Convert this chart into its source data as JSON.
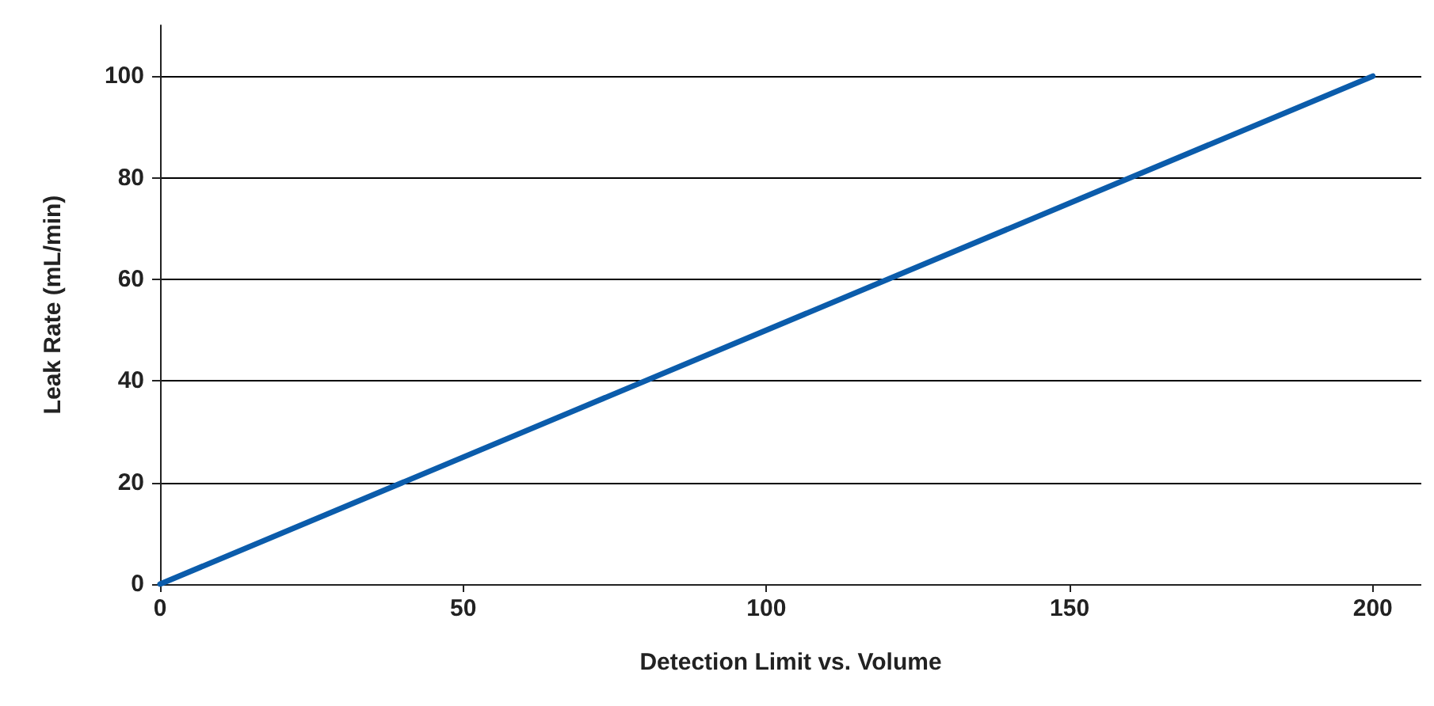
{
  "chart_data": {
    "type": "line",
    "xlabel": "Detection Limit vs. Volume",
    "ylabel": "Leak Rate (mL/min)",
    "x": [
      0,
      200
    ],
    "series": [
      {
        "color": "#0b5cab",
        "values": [
          0,
          100
        ]
      }
    ],
    "xlim": [
      0,
      208
    ],
    "xticks": [
      0,
      50,
      100,
      150,
      200
    ],
    "ylim": [
      0,
      110
    ],
    "yticks": [
      0,
      20,
      40,
      60,
      80,
      100
    ],
    "grid": "y",
    "marker": "none",
    "line_style": "solid"
  }
}
